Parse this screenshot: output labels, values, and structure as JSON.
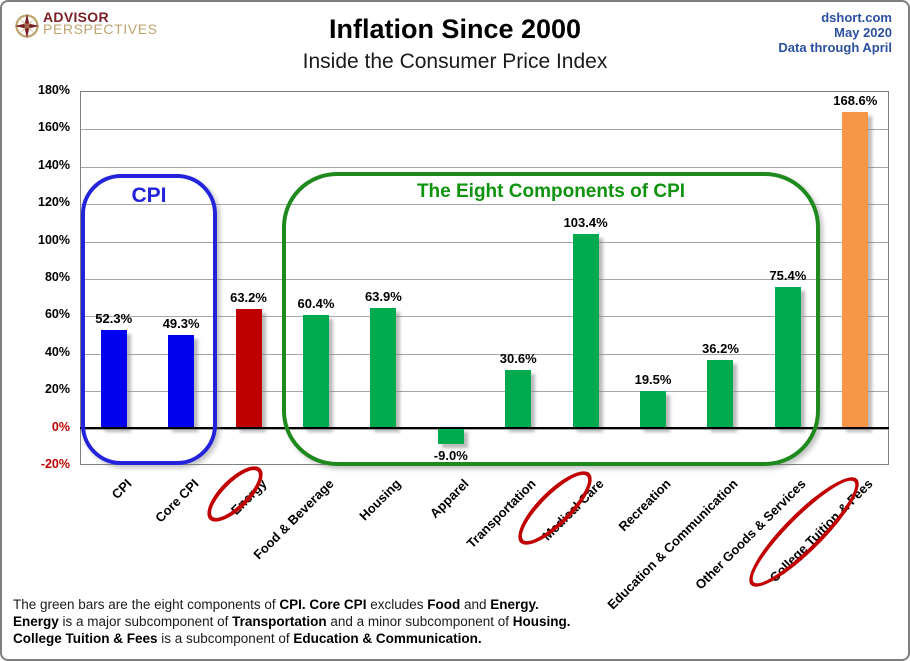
{
  "header": {
    "logo": {
      "icon": "compass-star-icon",
      "line1": "ADVISOR",
      "line2": "PERSPECTIVES"
    },
    "title": "Inflation Since 2000",
    "subtitle": "Inside the Consumer Price Index",
    "source": {
      "site": "dshort.com",
      "date": "May 2020",
      "note": "Data through April"
    }
  },
  "chart_data": {
    "type": "bar",
    "title": "Inflation Since 2000",
    "subtitle": "Inside the Consumer Price Index",
    "xlabel": "",
    "ylabel": "",
    "ylim": [
      -20,
      180
    ],
    "grid": true,
    "legend": false,
    "categories": [
      "CPI",
      "Core CPI",
      "Energy",
      "Food & Beverage",
      "Housing",
      "Apparel",
      "Transportation",
      "Medical Care",
      "Recreation",
      "Education & Communication",
      "Other Goods & Services",
      "College Tuition & Fees"
    ],
    "values": [
      52.3,
      49.3,
      63.2,
      60.4,
      63.9,
      -9.0,
      30.6,
      103.4,
      19.5,
      36.2,
      75.4,
      168.6
    ],
    "value_labels": [
      "52.3%",
      "49.3%",
      "63.2%",
      "60.4%",
      "63.9%",
      "-9.0%",
      "30.6%",
      "103.4%",
      "19.5%",
      "36.2%",
      "75.4%",
      "168.6%"
    ],
    "bar_colors": [
      "#0202f0",
      "#0202f0",
      "#c00000",
      "#00ab50",
      "#00ab50",
      "#00ab50",
      "#00ab50",
      "#00ab50",
      "#00ab50",
      "#00ab50",
      "#00ab50",
      "#f79646"
    ],
    "yticks": [
      {
        "value": 180,
        "label": "180%"
      },
      {
        "value": 160,
        "label": "160%"
      },
      {
        "value": 140,
        "label": "140%"
      },
      {
        "value": 120,
        "label": "120%"
      },
      {
        "value": 100,
        "label": "100%"
      },
      {
        "value": 80,
        "label": "80%"
      },
      {
        "value": 60,
        "label": "60%"
      },
      {
        "value": 40,
        "label": "40%"
      },
      {
        "value": 20,
        "label": "20%"
      },
      {
        "value": 0,
        "label": "0%"
      },
      {
        "value": -20,
        "label": "-20%"
      }
    ],
    "annotations": {
      "cpi_box_label": "CPI",
      "components_box_label": "The Eight Components of CPI",
      "circled_labels": [
        "Energy",
        "Medical Care",
        "College Tuition & Fees"
      ]
    },
    "colors": {
      "cpi_bar": "#0202f0",
      "energy_bar": "#c00000",
      "component_bar": "#00ab50",
      "college_bar": "#f79646",
      "negative_tick_text": "#c00000",
      "cpi_box_border": "#2323dc",
      "components_box_border": "#1e8a1e",
      "ellipse": "#c00000",
      "source_text": "#2b50a1"
    }
  },
  "footer": {
    "lines": [
      [
        {
          "t": "The green bars are the eight components of ",
          "b": false
        },
        {
          "t": "CPI. Core CPI",
          "b": true
        },
        {
          "t": " excludes ",
          "b": false
        },
        {
          "t": "Food",
          "b": true
        },
        {
          "t": " and ",
          "b": false
        },
        {
          "t": "Energy",
          "b": true
        },
        {
          "t": ".",
          "b": true
        }
      ],
      [
        {
          "t": "Energy",
          "b": true
        },
        {
          "t": " is a major subcomponent of ",
          "b": false
        },
        {
          "t": "Transportation",
          "b": true
        },
        {
          "t": " and a minor subcomponent of ",
          "b": false
        },
        {
          "t": "Housing",
          "b": true
        },
        {
          "t": ".",
          "b": true
        }
      ],
      [
        {
          "t": "College Tuition & Fees",
          "b": true
        },
        {
          "t": " is a subcomponent of ",
          "b": false
        },
        {
          "t": "Education & Communication",
          "b": true
        },
        {
          "t": ".",
          "b": true
        }
      ]
    ]
  }
}
